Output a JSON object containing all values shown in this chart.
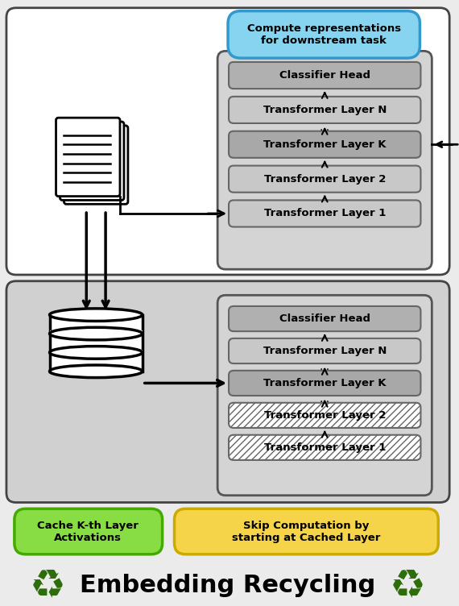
{
  "fig_width": 5.7,
  "fig_height": 7.52,
  "bg_color": "#ebebeb",
  "top_section_bg": "#ffffff",
  "bottom_section_bg": "#d0d0d0",
  "title": "Embedding Recycling",
  "top_label": "Compute representations\nfor downstream task",
  "layers": [
    "Classifier Head",
    "Transformer Layer N",
    "Transformer Layer K",
    "Transformer Layer 2",
    "Transformer Layer 1"
  ],
  "green_label": "Cache K-th Layer\nActivations",
  "yellow_label": "Skip Computation by\nstarting at Cached Layer",
  "recycling_color": "#2d6e0a",
  "blue_fc": "#87d4f0",
  "blue_ec": "#3399cc",
  "green_fc": "#88dd44",
  "green_ec": "#44aa00",
  "yellow_fc": "#f5d44a",
  "yellow_ec": "#ccaa00",
  "layer_fc": "#c8c8c8",
  "layer_ec": "#666666",
  "classifier_fc": "#b0b0b0",
  "classifier_ec": "#666666",
  "layerK_fc": "#a8a8a8",
  "tower_bg": "#d4d4d4",
  "tower_ec": "#555555"
}
